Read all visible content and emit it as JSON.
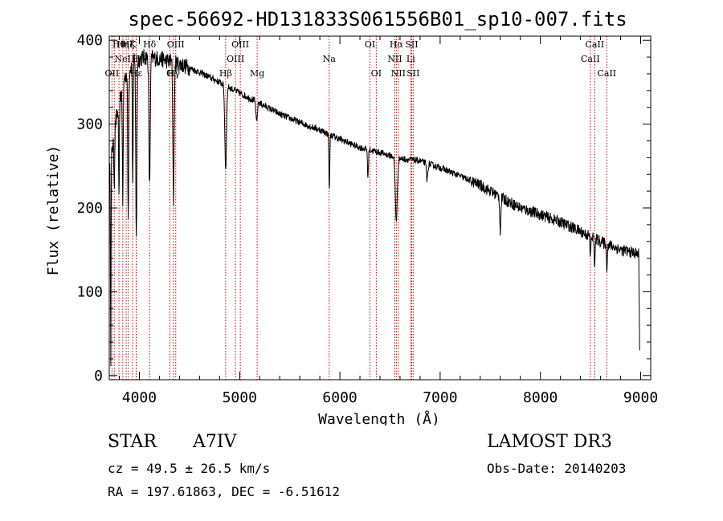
{
  "chart_data": {
    "type": "line",
    "title": "spec-56692-HD131833S061556B01_sp10-007.fits",
    "xlabel": "Wavelength (Å)",
    "ylabel": "Flux (relative)",
    "xlim": [
      3700,
      9100
    ],
    "ylim": [
      -5,
      405
    ],
    "xticks": [
      4000,
      5000,
      6000,
      7000,
      8000,
      9000
    ],
    "yticks": [
      0,
      100,
      200,
      300,
      400
    ],
    "continuum": [
      {
        "x": 3700,
        "y": 240
      },
      {
        "x": 3760,
        "y": 300
      },
      {
        "x": 3850,
        "y": 355
      },
      {
        "x": 3950,
        "y": 375
      },
      {
        "x": 4050,
        "y": 380
      },
      {
        "x": 4200,
        "y": 378
      },
      {
        "x": 4400,
        "y": 372
      },
      {
        "x": 4600,
        "y": 362
      },
      {
        "x": 4800,
        "y": 350
      },
      {
        "x": 5000,
        "y": 337
      },
      {
        "x": 5200,
        "y": 325
      },
      {
        "x": 5400,
        "y": 312
      },
      {
        "x": 5600,
        "y": 302
      },
      {
        "x": 5800,
        "y": 293
      },
      {
        "x": 6000,
        "y": 282
      },
      {
        "x": 6200,
        "y": 272
      },
      {
        "x": 6400,
        "y": 266
      },
      {
        "x": 6600,
        "y": 259
      },
      {
        "x": 6800,
        "y": 256
      },
      {
        "x": 7000,
        "y": 248
      },
      {
        "x": 7200,
        "y": 238
      },
      {
        "x": 7400,
        "y": 227
      },
      {
        "x": 7600,
        "y": 213
      },
      {
        "x": 7800,
        "y": 200
      },
      {
        "x": 8000,
        "y": 192
      },
      {
        "x": 8200,
        "y": 183
      },
      {
        "x": 8400,
        "y": 172
      },
      {
        "x": 8600,
        "y": 160
      },
      {
        "x": 8800,
        "y": 150
      },
      {
        "x": 8980,
        "y": 145
      }
    ],
    "absorption_features": [
      {
        "x": 3715,
        "depth": 235,
        "width": 4
      },
      {
        "x": 3750,
        "depth": 60,
        "width": 6
      },
      {
        "x": 3797,
        "depth": 120,
        "width": 5
      },
      {
        "x": 3835,
        "depth": 140,
        "width": 6
      },
      {
        "x": 3889,
        "depth": 175,
        "width": 7
      },
      {
        "x": 3934,
        "depth": 150,
        "width": 5
      },
      {
        "x": 3970,
        "depth": 215,
        "width": 8
      },
      {
        "x": 4102,
        "depth": 155,
        "width": 9
      },
      {
        "x": 4341,
        "depth": 165,
        "width": 9
      },
      {
        "x": 4861,
        "depth": 100,
        "width": 12
      },
      {
        "x": 5170,
        "depth": 25,
        "width": 10
      },
      {
        "x": 5895,
        "depth": 65,
        "width": 6
      },
      {
        "x": 6280,
        "depth": 35,
        "width": 6
      },
      {
        "x": 6563,
        "depth": 75,
        "width": 14
      },
      {
        "x": 6870,
        "depth": 20,
        "width": 10
      },
      {
        "x": 7600,
        "depth": 40,
        "width": 8
      },
      {
        "x": 8498,
        "depth": 25,
        "width": 6
      },
      {
        "x": 8542,
        "depth": 35,
        "width": 6
      },
      {
        "x": 8662,
        "depth": 30,
        "width": 6
      }
    ],
    "spectrum_end": {
      "x": 8990,
      "y": 30
    },
    "line_markers": [
      {
        "x": 3727,
        "label": "OII",
        "row": 2
      },
      {
        "x": 3750,
        "label": "",
        "row": 0
      },
      {
        "x": 3797,
        "label": "Hθ",
        "row": 0
      },
      {
        "x": 3835,
        "label": "Hη",
        "row": 0
      },
      {
        "x": 3869,
        "label": "NeIII",
        "row": 1
      },
      {
        "x": 3889,
        "label": "Hζ",
        "row": 0
      },
      {
        "x": 3934,
        "label": "K",
        "row": 0
      },
      {
        "x": 3968,
        "label": "H",
        "row": 1
      },
      {
        "x": 3970,
        "label": "Hε",
        "row": 2
      },
      {
        "x": 4102,
        "label": "Hδ",
        "row": 0
      },
      {
        "x": 4304,
        "label": "G",
        "row": 2
      },
      {
        "x": 4341,
        "label": "Hγ",
        "row": 2
      },
      {
        "x": 4363,
        "label": "OIII",
        "row": 0
      },
      {
        "x": 4861,
        "label": "Hβ",
        "row": 2
      },
      {
        "x": 4959,
        "label": "OIII",
        "row": 1
      },
      {
        "x": 5007,
        "label": "OIII",
        "row": 0
      },
      {
        "x": 5175,
        "label": "Mg",
        "row": 2
      },
      {
        "x": 5893,
        "label": "Na",
        "row": 1
      },
      {
        "x": 6300,
        "label": "OI",
        "row": 0
      },
      {
        "x": 6363,
        "label": "OI",
        "row": 2
      },
      {
        "x": 6548,
        "label": "NII",
        "row": 1
      },
      {
        "x": 6563,
        "label": "Hα",
        "row": 0
      },
      {
        "x": 6583,
        "label": "NII",
        "row": 2
      },
      {
        "x": 6707,
        "label": "Li",
        "row": 1
      },
      {
        "x": 6716,
        "label": "SII",
        "row": 0
      },
      {
        "x": 6731,
        "label": "SII",
        "row": 2
      },
      {
        "x": 8498,
        "label": "CaII",
        "row": 1
      },
      {
        "x": 8542,
        "label": "CaII",
        "row": 0
      },
      {
        "x": 8662,
        "label": "CaII",
        "row": 2
      }
    ],
    "colors": {
      "spectrum": "#000000",
      "markers": "#cc0000",
      "axes": "#000000"
    }
  },
  "info": {
    "object_class": "STAR",
    "subclass": "A7IV",
    "survey": "LAMOST DR3",
    "redshift": "cz = 49.5 ± 26.5 km/s",
    "obs_date": "Obs-Date: 20140203",
    "coords": "RA = 197.61863, DEC =  -6.51612"
  }
}
